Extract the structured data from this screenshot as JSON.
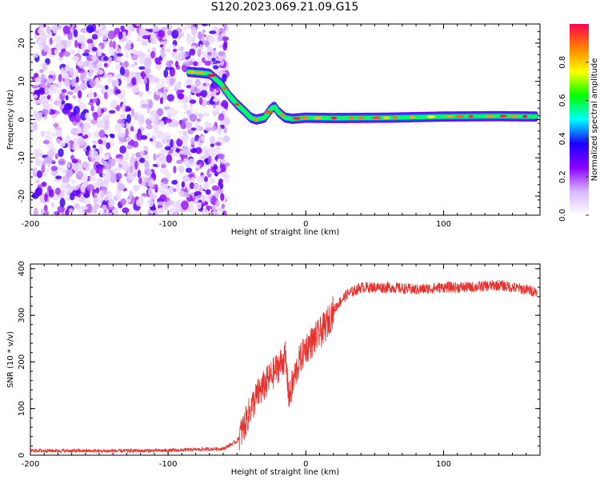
{
  "title": "S120.2023.069.21.09.G15",
  "colors": {
    "snr_line": "#e8312d",
    "axis": "#000000",
    "colormap": [
      "#ffffff",
      "#d8b6ff",
      "#8a00ff",
      "#1a00ff",
      "#00ffff",
      "#00ff00",
      "#ffff00",
      "#ff8000",
      "#ff0050"
    ]
  },
  "chart_data": [
    {
      "type": "heatmap",
      "xlabel": "Height of straight line (km)",
      "ylabel": "Frequency (Hz)",
      "xlim": [
        -200,
        170
      ],
      "ylim": [
        -25,
        25
      ],
      "xticks": [
        -200,
        -100,
        0,
        100
      ],
      "yticks": [
        -20,
        -10,
        0,
        10,
        20
      ],
      "colorbar": {
        "label": "Normalized spectral amplitude",
        "range": [
          0.0,
          1.0
        ],
        "ticks": [
          0.0,
          0.2,
          0.4,
          0.6,
          0.8
        ]
      },
      "ridge": {
        "x": [
          -85,
          -70,
          -62,
          -55,
          -50,
          -44,
          -40,
          -36,
          -30,
          -26,
          -23,
          -20,
          -15,
          -10,
          0,
          20,
          60,
          100,
          140,
          168
        ],
        "y": [
          12.5,
          12.0,
          9.5,
          6.0,
          4.0,
          2.0,
          0.5,
          0.0,
          0.5,
          2.5,
          3.5,
          2.0,
          0.5,
          0.2,
          0.5,
          0.4,
          0.5,
          0.8,
          0.9,
          0.8
        ]
      },
      "noise_region_x": [
        -200,
        -60
      ]
    },
    {
      "type": "line",
      "xlabel": "Height of straight line (km)",
      "ylabel": "SNR (10 * v/v)",
      "xlim": [
        -200,
        170
      ],
      "ylim": [
        0,
        410
      ],
      "xticks": [
        -200,
        -100,
        0,
        100
      ],
      "yticks": [
        0,
        100,
        200,
        300,
        400
      ],
      "series": [
        {
          "x": [
            -200,
            -150,
            -100,
            -60,
            -50,
            -45,
            -40,
            -35,
            -30,
            -25,
            -20,
            -15,
            -12,
            -10,
            -5,
            0,
            5,
            10,
            15,
            20,
            25,
            30,
            40,
            60,
            80,
            100,
            120,
            140,
            160,
            168
          ],
          "y": [
            10,
            9,
            10,
            14,
            30,
            60,
            100,
            130,
            150,
            170,
            190,
            210,
            120,
            150,
            200,
            230,
            245,
            260,
            280,
            310,
            330,
            345,
            360,
            360,
            355,
            360,
            360,
            365,
            355,
            350
          ]
        }
      ]
    }
  ]
}
